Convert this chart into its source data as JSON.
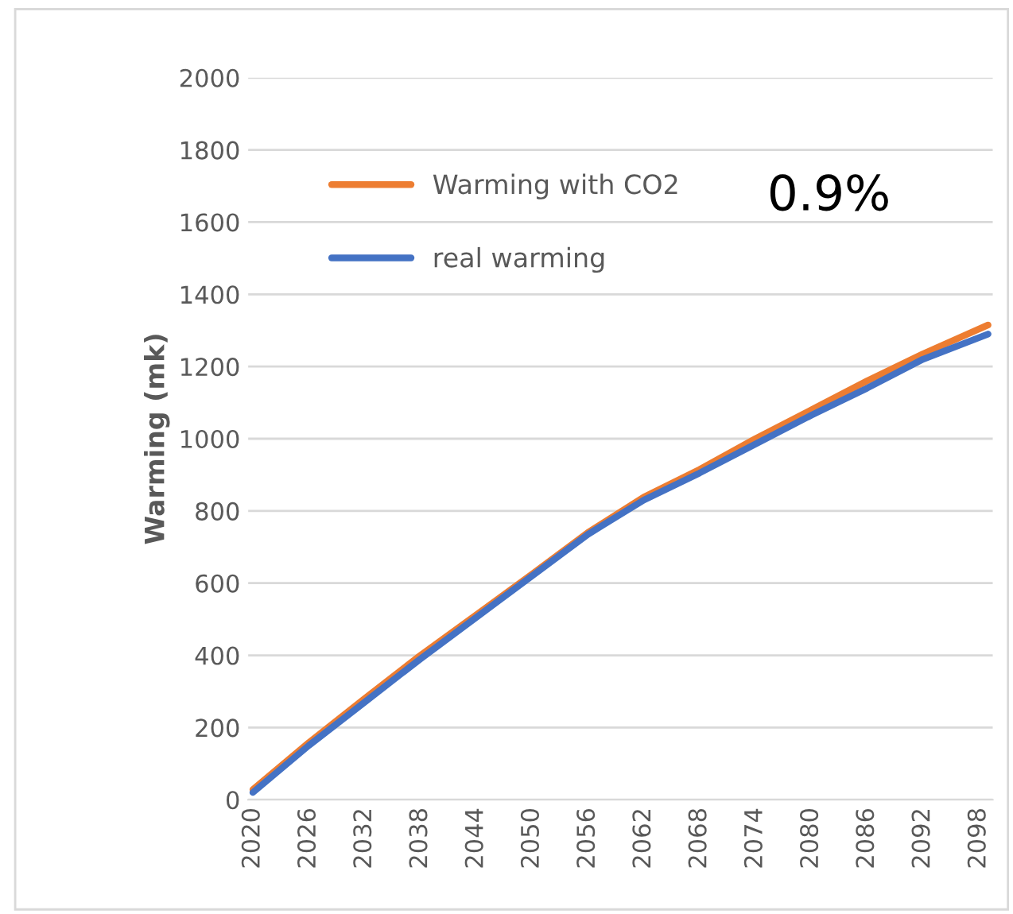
{
  "chart_data": {
    "type": "line",
    "ylabel": "Warming (mk)",
    "annotations": [
      "0.9%"
    ],
    "series": [
      {
        "name": "Warming with CO2",
        "color": "#ed7d31",
        "x": [
          2020,
          2026,
          2032,
          2038,
          2044,
          2050,
          2056,
          2062,
          2068,
          2074,
          2080,
          2086,
          2092,
          2099
        ],
        "values": [
          28,
          158,
          280,
          400,
          512,
          625,
          740,
          838,
          915,
          1000,
          1080,
          1160,
          1235,
          1315
        ]
      },
      {
        "name": "real warming",
        "color": "#4472c4",
        "x": [
          2020,
          2026,
          2032,
          2038,
          2044,
          2050,
          2056,
          2062,
          2068,
          2074,
          2080,
          2086,
          2092,
          2099
        ],
        "values": [
          20,
          150,
          270,
          390,
          505,
          620,
          735,
          830,
          905,
          985,
          1065,
          1140,
          1220,
          1290
        ]
      }
    ],
    "xlim": [
      2019.5,
      2099.5
    ],
    "xticks": [
      2020,
      2026,
      2032,
      2038,
      2044,
      2050,
      2056,
      2062,
      2068,
      2074,
      2080,
      2086,
      2092,
      2098
    ],
    "ylim": [
      0,
      2000
    ],
    "yticks": [
      0,
      200,
      400,
      600,
      800,
      1000,
      1200,
      1400,
      1600,
      1800,
      2000
    ],
    "grid": "y",
    "legend": "top left",
    "marker": "none",
    "line_style": "solid"
  }
}
